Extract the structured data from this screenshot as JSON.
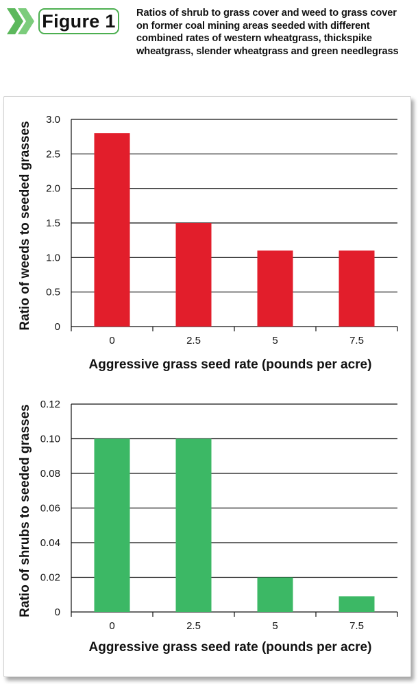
{
  "header": {
    "figure_label": "Figure 1",
    "caption": "Ratios of shrub to grass cover and weed to grass cover on former coal mining areas seeded with different combined rates of western wheatgrass, thickspike wheatgrass, slender wheatgrass and green needlegrass",
    "chevron_color": "#5cb85c"
  },
  "chart_data": [
    {
      "type": "bar",
      "categories": [
        "0",
        "2.5",
        "5",
        "7.5"
      ],
      "values": [
        2.8,
        1.5,
        1.1,
        1.1
      ],
      "ylim": [
        0,
        3.0
      ],
      "yticks": [
        "0",
        "0.5",
        "1.0",
        "1.5",
        "2.0",
        "2.5",
        "3.0"
      ],
      "ytick_values": [
        0,
        0.5,
        1.0,
        1.5,
        2.0,
        2.5,
        3.0
      ],
      "xlabel": "Aggressive grass seed rate (pounds per acre)",
      "ylabel": "Ratio of weeds to seeded grasses",
      "bar_color": "#e21e2b",
      "grid": true
    },
    {
      "type": "bar",
      "categories": [
        "0",
        "2.5",
        "5",
        "7.5"
      ],
      "values": [
        0.1,
        0.1,
        0.02,
        0.009
      ],
      "ylim": [
        0,
        0.12
      ],
      "yticks": [
        "0",
        "0.02",
        "0.04",
        "0.06",
        "0.08",
        "0.10",
        "0.12"
      ],
      "ytick_values": [
        0,
        0.02,
        0.04,
        0.06,
        0.08,
        0.1,
        0.12
      ],
      "xlabel": "Aggressive grass seed rate (pounds per acre)",
      "ylabel": "Ratio of shrubs to seeded grasses",
      "bar_color": "#3cb865",
      "grid": true
    }
  ]
}
